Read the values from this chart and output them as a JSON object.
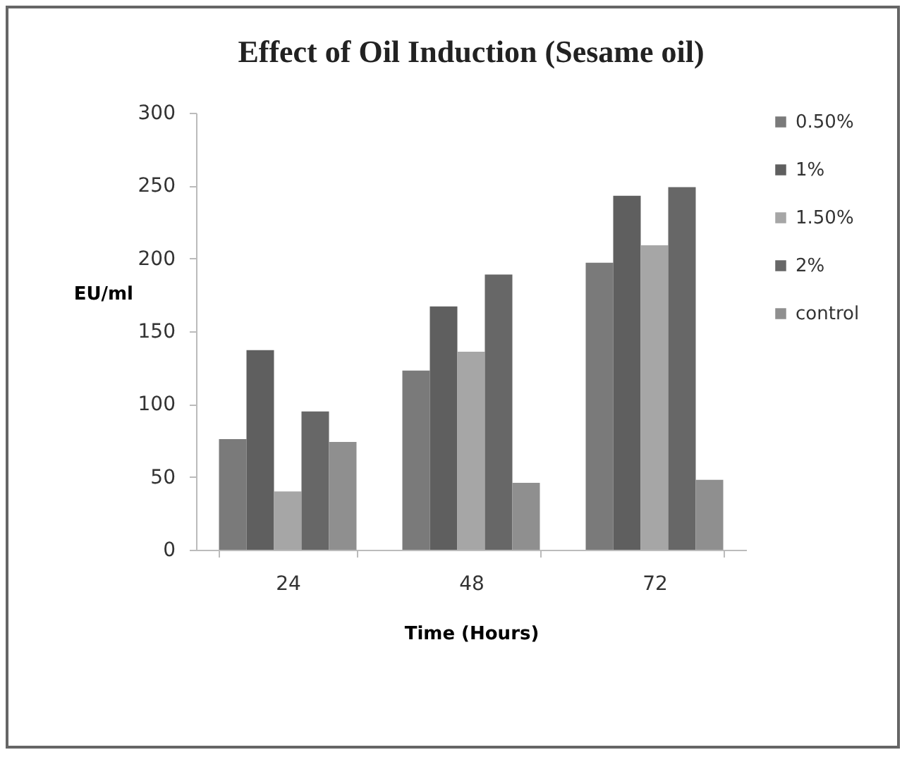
{
  "chart_data": {
    "type": "bar",
    "title": "Effect of Oil Induction (Sesame oil)",
    "xlabel": "Time (Hours)",
    "ylabel": "EU/ml",
    "categories": [
      "24",
      "48",
      "72"
    ],
    "series": [
      {
        "name": "0.50%",
        "color": "#7a7a7a",
        "values": [
          76,
          123,
          197
        ]
      },
      {
        "name": "1%",
        "color": "#5f5f5f",
        "values": [
          137,
          167,
          243
        ]
      },
      {
        "name": "1.50%",
        "color": "#a6a6a6",
        "values": [
          40,
          136,
          209
        ]
      },
      {
        "name": "2%",
        "color": "#676767",
        "values": [
          95,
          189,
          249
        ]
      },
      {
        "name": "control",
        "color": "#8f8f8f",
        "values": [
          74,
          46,
          48
        ]
      }
    ],
    "ylim": [
      0,
      300
    ],
    "yticks": [
      0,
      50,
      100,
      150,
      200,
      250,
      300
    ],
    "grid": false,
    "legend": "right"
  }
}
